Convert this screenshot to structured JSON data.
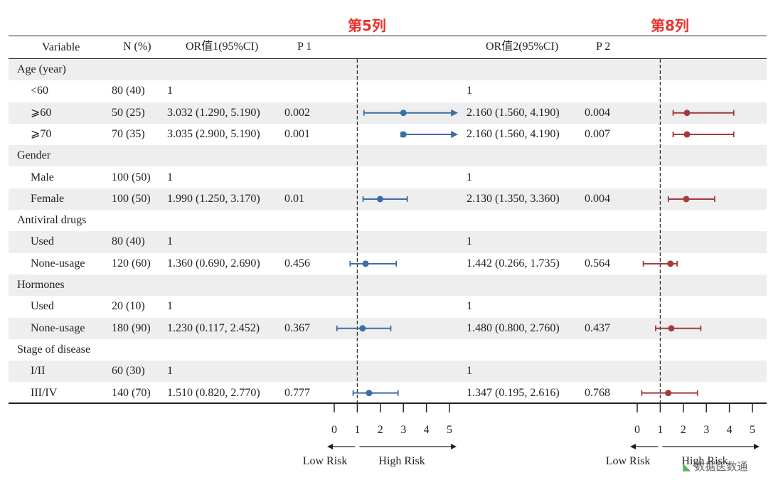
{
  "col_notes": {
    "left": "第5列",
    "right": "第8列"
  },
  "headers": {
    "variable": "Variable",
    "n": "N (%)",
    "or1": "OR值1(95%CI)",
    "p1": "P 1",
    "or2": "OR值2(95%CI)",
    "p2": "P 2"
  },
  "rows": [
    {
      "variable": "Age (year)",
      "group": true
    },
    {
      "variable": "<60",
      "n": "80 (40)",
      "or1": "1",
      "p1": "",
      "or2": "1",
      "p2": ""
    },
    {
      "variable": "⩾60",
      "n": "50 (25)",
      "or1": "3.032 (1.290, 5.190)",
      "p1": "0.002",
      "or2": "2.160 (1.560, 4.190)",
      "p2": "0.004"
    },
    {
      "variable": "⩾70",
      "n": "70 (35)",
      "or1": "3.035 (2.900, 5.190)",
      "p1": "0.001",
      "or2": "2.160 (1.560, 4.190)",
      "p2": "0.007"
    },
    {
      "variable": "Gender",
      "group": true
    },
    {
      "variable": "Male",
      "n": "100 (50)",
      "or1": "1",
      "p1": "",
      "or2": "1",
      "p2": ""
    },
    {
      "variable": "Female",
      "n": "100 (50)",
      "or1": "1.990 (1.250, 3.170)",
      "p1": "0.01",
      "or2": "2.130 (1.350, 3.360)",
      "p2": "0.004"
    },
    {
      "variable": "Antiviral drugs",
      "group": true
    },
    {
      "variable": "Used",
      "n": "80 (40)",
      "or1": "1",
      "p1": "",
      "or2": "1",
      "p2": ""
    },
    {
      "variable": "None-usage",
      "n": "120 (60)",
      "or1": "1.360 (0.690, 2.690)",
      "p1": "0.456",
      "or2": "1.442 (0.266, 1.735)",
      "p2": "0.564"
    },
    {
      "variable": "Hormones",
      "group": true
    },
    {
      "variable": "Used",
      "n": "20 (10)",
      "or1": "1",
      "p1": "",
      "or2": "1",
      "p2": ""
    },
    {
      "variable": "None-usage",
      "n": "180 (90)",
      "or1": "1.230 (0.117, 2.452)",
      "p1": "0.367",
      "or2": "1.480 (0.800, 2.760)",
      "p2": "0.437"
    },
    {
      "variable": "Stage of disease",
      "group": true
    },
    {
      "variable": "I/II",
      "n": "60 (30)",
      "or1": "1",
      "p1": "",
      "or2": "1",
      "p2": ""
    },
    {
      "variable": "III/IV",
      "n": "140 (70)",
      "or1": "1.510 (0.820, 2.770)",
      "p1": "0.777",
      "or2": "1.347 (0.195, 2.616)",
      "p2": "0.768"
    }
  ],
  "chart_data": [
    {
      "type": "scatter",
      "subtype": "forest",
      "color": "#3a6ea5",
      "xlim": [
        0,
        5
      ],
      "xticks": [
        "0",
        "1",
        "2",
        "3",
        "4",
        "5"
      ],
      "reference_line": 1,
      "arrow_labels": {
        "left": "Low Risk",
        "right": "High Risk"
      },
      "points": [
        {
          "row": 2,
          "est": 3.0,
          "lo": 1.29,
          "hi": 5.19,
          "arrow_hi": true
        },
        {
          "row": 3,
          "est": 3.0,
          "lo": 2.9,
          "hi": 5.19,
          "arrow_hi": true
        },
        {
          "row": 6,
          "est": 1.99,
          "lo": 1.25,
          "hi": 3.17
        },
        {
          "row": 9,
          "est": 1.36,
          "lo": 0.69,
          "hi": 2.69
        },
        {
          "row": 12,
          "est": 1.23,
          "lo": 0.117,
          "hi": 2.452
        },
        {
          "row": 15,
          "est": 1.51,
          "lo": 0.82,
          "hi": 2.77
        }
      ]
    },
    {
      "type": "scatter",
      "subtype": "forest",
      "color": "#a33b3b",
      "xlim": [
        0,
        5
      ],
      "xticks": [
        "0",
        "1",
        "2",
        "3",
        "4",
        "5"
      ],
      "reference_line": 1,
      "arrow_labels": {
        "left": "Low Risk",
        "right": "High Risk"
      },
      "points": [
        {
          "row": 2,
          "est": 2.16,
          "lo": 1.56,
          "hi": 4.19
        },
        {
          "row": 3,
          "est": 2.16,
          "lo": 1.56,
          "hi": 4.19
        },
        {
          "row": 6,
          "est": 2.13,
          "lo": 1.35,
          "hi": 3.36
        },
        {
          "row": 9,
          "est": 1.442,
          "lo": 0.266,
          "hi": 1.735
        },
        {
          "row": 12,
          "est": 1.48,
          "lo": 0.8,
          "hi": 2.76
        },
        {
          "row": 15,
          "est": 1.347,
          "lo": 0.195,
          "hi": 2.616
        }
      ]
    }
  ],
  "watermark": "数据医数通"
}
